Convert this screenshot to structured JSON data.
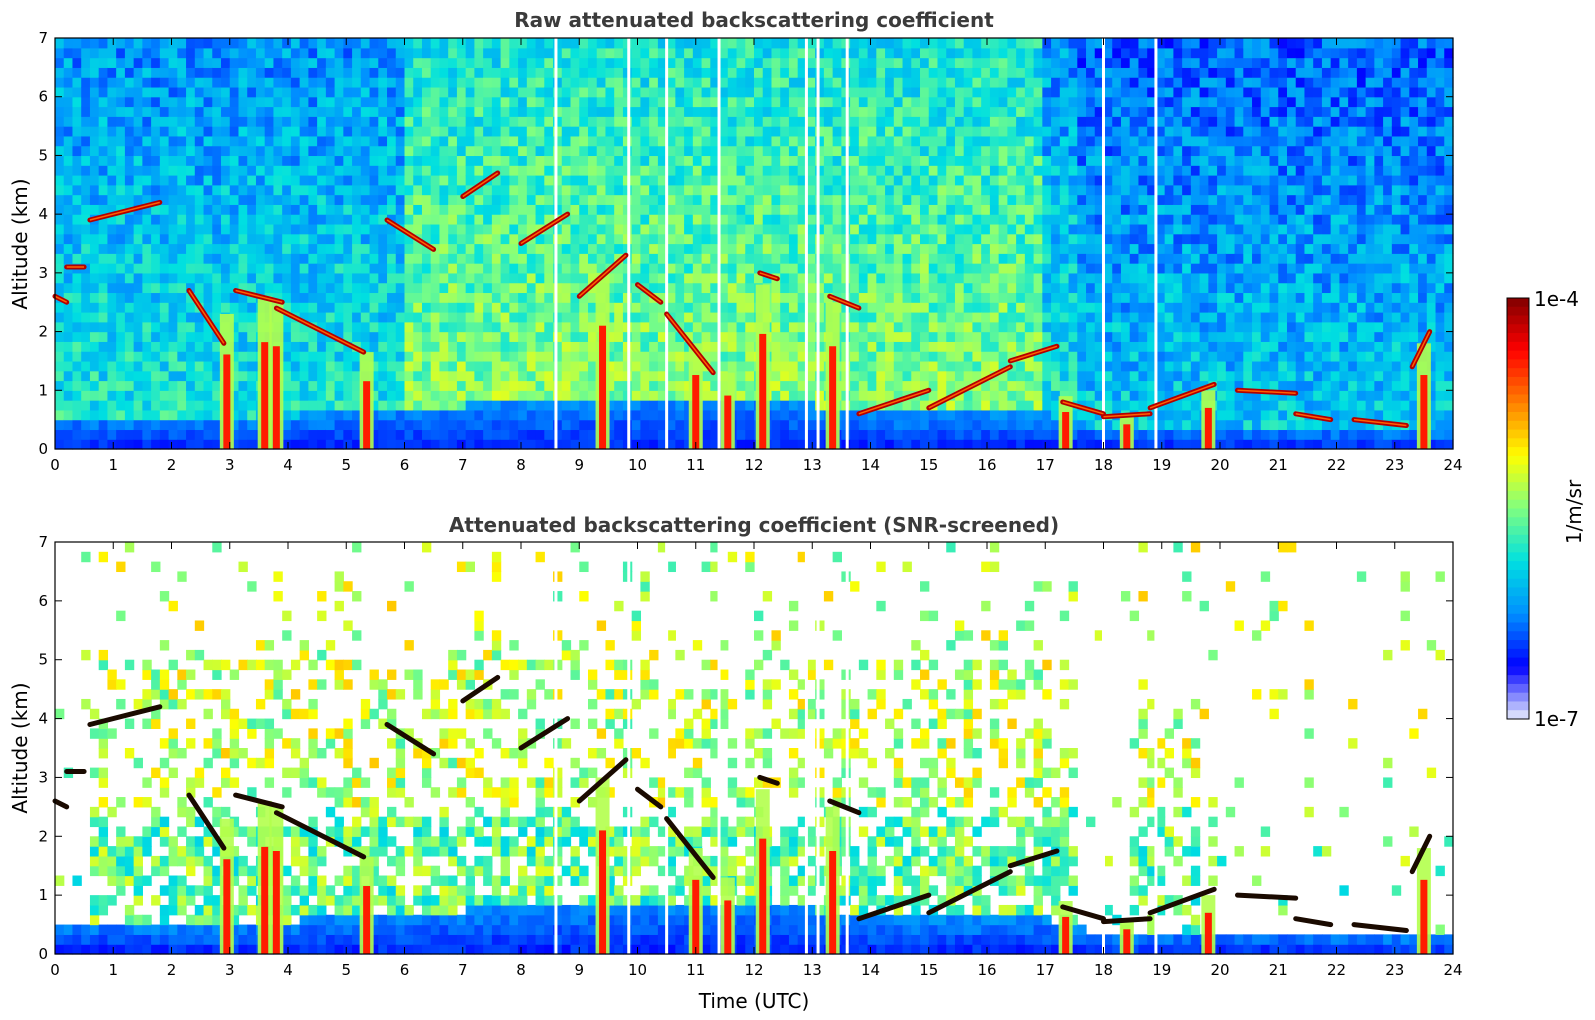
{
  "chart_data": [
    {
      "type": "heatmap",
      "title": "Raw attenuated backscattering coefficient",
      "xlabel": "",
      "ylabel": "Altitude (km)",
      "xlim": [
        0,
        24
      ],
      "ylim": [
        0,
        7
      ],
      "xticks": [
        "0",
        "1",
        "2",
        "3",
        "4",
        "5",
        "6",
        "7",
        "8",
        "9",
        "10",
        "11",
        "12",
        "13",
        "14",
        "15",
        "16",
        "17",
        "18",
        "19",
        "20",
        "21",
        "22",
        "23",
        "24"
      ],
      "yticks": [
        "0",
        "1",
        "2",
        "3",
        "4",
        "5",
        "6",
        "7"
      ],
      "screened": false,
      "features": {
        "boundary_layer_top_km": [
          [
            0,
            0.55
          ],
          [
            3,
            0.5
          ],
          [
            6,
            0.7
          ],
          [
            9,
            0.85
          ],
          [
            12,
            0.9
          ],
          [
            13.5,
            0.7
          ],
          [
            14,
            0.6
          ],
          [
            17,
            0.6
          ],
          [
            18,
            0.35
          ],
          [
            20,
            0.4
          ],
          [
            22,
            0.35
          ],
          [
            24,
            0.3
          ]
        ],
        "cloud_layers": [
          {
            "x": [
              0,
              0.2
            ],
            "y": [
              2.6,
              2.5
            ]
          },
          {
            "x": [
              0.2,
              0.5
            ],
            "y": [
              3.1,
              3.1
            ]
          },
          {
            "x": [
              0.6,
              1.8
            ],
            "y": [
              3.9,
              4.2
            ]
          },
          {
            "x": [
              2.3,
              2.9
            ],
            "y": [
              2.7,
              1.8
            ]
          },
          {
            "x": [
              3.1,
              3.9
            ],
            "y": [
              2.7,
              2.5
            ]
          },
          {
            "x": [
              3.8,
              5.3
            ],
            "y": [
              2.4,
              1.65
            ]
          },
          {
            "x": [
              5.7,
              6.5
            ],
            "y": [
              3.9,
              3.4
            ]
          },
          {
            "x": [
              7.0,
              7.6
            ],
            "y": [
              4.3,
              4.7
            ]
          },
          {
            "x": [
              8.0,
              8.8
            ],
            "y": [
              3.5,
              4.0
            ]
          },
          {
            "x": [
              9.0,
              9.8
            ],
            "y": [
              2.6,
              3.3
            ]
          },
          {
            "x": [
              10.0,
              10.4
            ],
            "y": [
              2.8,
              2.5
            ]
          },
          {
            "x": [
              10.5,
              11.3
            ],
            "y": [
              2.3,
              1.3
            ]
          },
          {
            "x": [
              12.1,
              12.4
            ],
            "y": [
              3.0,
              2.9
            ]
          },
          {
            "x": [
              13.3,
              13.8
            ],
            "y": [
              2.6,
              2.4
            ]
          },
          {
            "x": [
              13.8,
              15.0
            ],
            "y": [
              0.6,
              1.0
            ]
          },
          {
            "x": [
              15.0,
              16.4
            ],
            "y": [
              0.7,
              1.4
            ]
          },
          {
            "x": [
              16.4,
              17.2
            ],
            "y": [
              1.5,
              1.75
            ]
          },
          {
            "x": [
              17.3,
              18.0
            ],
            "y": [
              0.8,
              0.6
            ]
          },
          {
            "x": [
              18.0,
              18.8
            ],
            "y": [
              0.55,
              0.6
            ]
          },
          {
            "x": [
              18.8,
              19.9
            ],
            "y": [
              0.7,
              1.1
            ]
          },
          {
            "x": [
              20.3,
              21.3
            ],
            "y": [
              1.0,
              0.95
            ]
          },
          {
            "x": [
              21.3,
              21.9
            ],
            "y": [
              0.6,
              0.5
            ]
          },
          {
            "x": [
              22.3,
              23.2
            ],
            "y": [
              0.5,
              0.4
            ]
          },
          {
            "x": [
              23.3,
              23.6
            ],
            "y": [
              1.4,
              2.0
            ]
          }
        ],
        "precipitation_shafts": [
          [
            2.95,
            2.3
          ],
          [
            3.6,
            2.6
          ],
          [
            3.8,
            2.5
          ],
          [
            5.35,
            1.65
          ],
          [
            9.4,
            3.0
          ],
          [
            11.0,
            1.8
          ],
          [
            11.55,
            1.3
          ],
          [
            12.15,
            2.8
          ],
          [
            13.35,
            2.5
          ],
          [
            17.35,
            0.9
          ],
          [
            18.4,
            0.6
          ],
          [
            19.8,
            1.0
          ],
          [
            23.5,
            1.8
          ]
        ],
        "data_gaps_utc": [
          8.6,
          9.85,
          10.5,
          11.4,
          12.9,
          13.1,
          13.6,
          18.0,
          18.9
        ]
      }
    },
    {
      "type": "heatmap",
      "title": "Attenuated backscattering coefficient (SNR-screened)",
      "xlabel": "Time (UTC)",
      "ylabel": "Altitude (km)",
      "xlim": [
        0,
        24
      ],
      "ylim": [
        0,
        7
      ],
      "xticks": [
        "0",
        "1",
        "2",
        "3",
        "4",
        "5",
        "6",
        "7",
        "8",
        "9",
        "10",
        "11",
        "12",
        "13",
        "14",
        "15",
        "16",
        "17",
        "18",
        "19",
        "20",
        "21",
        "22",
        "23",
        "24"
      ],
      "yticks": [
        "0",
        "1",
        "2",
        "3",
        "4",
        "5",
        "6",
        "7"
      ],
      "screened": true
    }
  ],
  "colorbar": {
    "label": "1/m/sr",
    "max_label": "1e-4",
    "min_label": "1e-7",
    "scale": "log",
    "range": [
      1e-07,
      0.0001
    ],
    "colors": [
      "#e8eefc",
      "#0000ff",
      "#0090ff",
      "#00e0e0",
      "#80ff80",
      "#ffff00",
      "#ff8000",
      "#ff0000",
      "#800000"
    ]
  }
}
